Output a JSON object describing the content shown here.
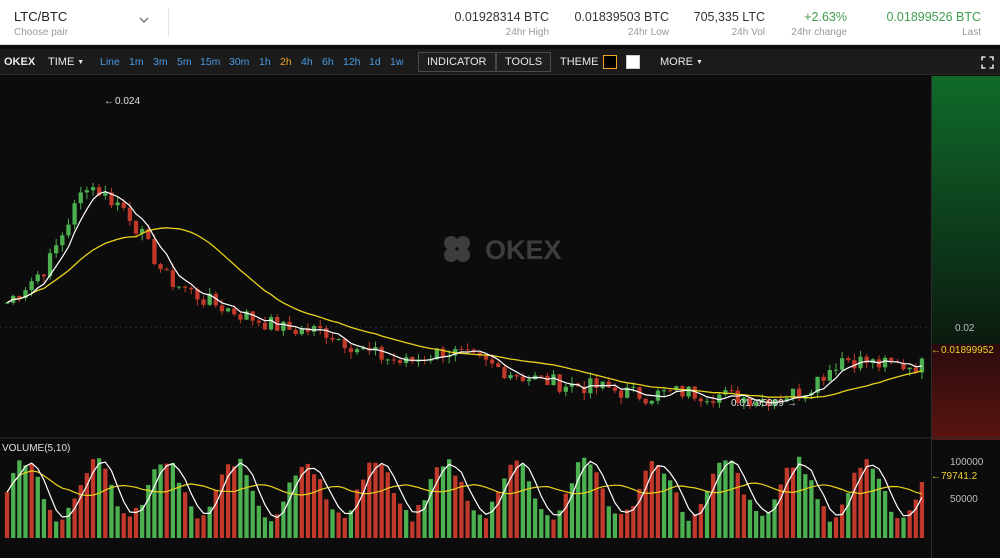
{
  "header": {
    "pair": "LTC/BTC",
    "pair_sub": "Choose pair",
    "stats": [
      {
        "value": "0.01928314 BTC",
        "label": "24hr High",
        "color": "#333333"
      },
      {
        "value": "0.01839503 BTC",
        "label": "24hr Low",
        "color": "#333333"
      },
      {
        "value": "705,335 LTC",
        "label": "24h Vol",
        "color": "#333333"
      },
      {
        "value": "+2.63%",
        "label": "24hr change",
        "color": "#3f9d4e"
      },
      {
        "value": "0.01899526 BTC",
        "label": "Last",
        "color": "#3f9d4e"
      }
    ]
  },
  "toolbar": {
    "brand": "OKEX",
    "time_label": "TIME",
    "intervals": [
      "Line",
      "1m",
      "3m",
      "5m",
      "15m",
      "30m",
      "1h",
      "2h",
      "4h",
      "6h",
      "12h",
      "1d",
      "1w"
    ],
    "active_interval": "2h",
    "indicator": "INDICATOR",
    "tools": "TOOLS",
    "theme": "THEME",
    "more": "MORE"
  },
  "chart": {
    "watermark": "OKEX",
    "volume_label": "VOLUME(5,10)",
    "price_axis_label": "0.02",
    "price_tag": "0.01899952",
    "high_marker": "0.024",
    "low_marker": "0.01795999",
    "volume_axis": [
      "100000",
      "50000"
    ],
    "volume_tag": "79741.2",
    "up_color": "#4caf50",
    "down_color": "#c0392b"
  },
  "chart_data": {
    "type": "candlestick",
    "pair": "LTC/BTC",
    "interval": "2h",
    "price_range": [
      0.0174,
      0.0264
    ],
    "price_ticks": [
      0.02
    ],
    "high": 0.024,
    "low": 0.01795999,
    "last": 0.01899952,
    "close_anchors": [
      0.02065,
      0.0216,
      0.0238,
      0.0231,
      0.0213,
      0.0207,
      0.0203,
      0.01995,
      0.0199,
      0.01935,
      0.01905,
      0.0194,
      0.01905,
      0.0187,
      0.0185,
      0.0184,
      0.0182,
      0.0183,
      0.0182,
      0.0181,
      0.0183,
      0.0192,
      0.019,
      0.019
    ],
    "ma_lines": [
      "MA short (white)",
      "MA long (yellow)"
    ],
    "volume_ticks": [
      100000,
      50000
    ],
    "volume_last_ma": 79741.2
  }
}
